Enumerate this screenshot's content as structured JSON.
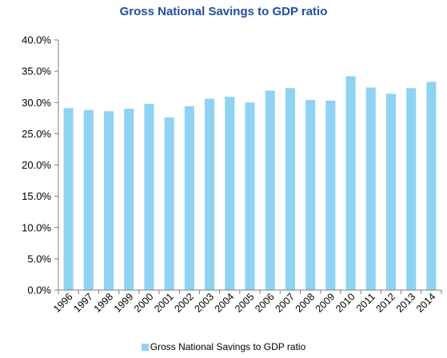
{
  "colors": {
    "title": "#1f4e9c",
    "bar": "#8fd3f2",
    "axis": "#7f7f7f",
    "text": "#000000"
  },
  "chart_data": {
    "type": "bar",
    "title": "Gross National Savings to GDP ratio",
    "xlabel": "",
    "ylabel": "",
    "ylim": [
      0,
      40
    ],
    "y_tick_labels": [
      "0.0%",
      "5.0%",
      "10.0%",
      "15.0%",
      "20.0%",
      "25.0%",
      "30.0%",
      "35.0%",
      "40.0%"
    ],
    "grid": false,
    "legend_position": "bottom",
    "categories": [
      "1996",
      "1997",
      "1998",
      "1999",
      "2000",
      "2001",
      "2002",
      "2003",
      "2004",
      "2005",
      "2006",
      "2007",
      "2008",
      "2009",
      "2010",
      "2011",
      "2012",
      "2013",
      "2014"
    ],
    "series": [
      {
        "name": "Gross National Savings to GDP ratio",
        "values": [
          29.1,
          28.8,
          28.6,
          29.0,
          29.8,
          27.6,
          29.4,
          30.6,
          30.9,
          30.0,
          31.9,
          32.3,
          30.4,
          30.3,
          34.2,
          32.4,
          31.4,
          32.3,
          33.3
        ]
      }
    ]
  }
}
